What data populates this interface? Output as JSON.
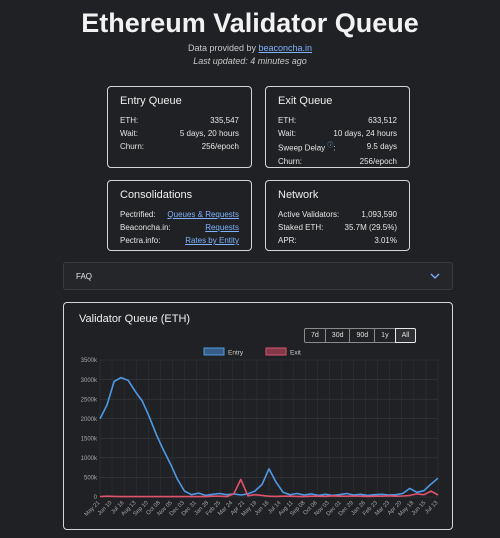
{
  "page": {
    "title": "Ethereum Validator Queue",
    "provided_prefix": "Data provided by ",
    "provider_link": "beaconcha.in",
    "last_updated": "Last updated: 4 minutes ago"
  },
  "entry": {
    "title": "Entry Queue",
    "rows": [
      {
        "label": "ETH:",
        "value": "335,547"
      },
      {
        "label": "Wait:",
        "value": "5 days, 20 hours"
      },
      {
        "label": "Churn:",
        "value": "256/epoch"
      }
    ]
  },
  "exit": {
    "title": "Exit Queue",
    "eth_label": "ETH:",
    "eth_value": "633,512",
    "wait_label": "Wait:",
    "wait_value": "10 days, 24 hours",
    "sweep_label": "Sweep Delay",
    "sweep_value": "9.5 days",
    "sweep_info_icon": "info-icon",
    "churn_label": "Churn:",
    "churn_value": "256/epoch"
  },
  "consolidations": {
    "title": "Consolidations",
    "rows": [
      {
        "label": "Pectrified:",
        "link": "Queues & Requests"
      },
      {
        "label": "Beaconcha.in:",
        "link": "Requests"
      },
      {
        "label": "Pectra.info:",
        "link": "Rates by Entity"
      }
    ]
  },
  "network": {
    "title": "Network",
    "rows": [
      {
        "label": "Active Validators:",
        "value": "1,093,590"
      },
      {
        "label": "Staked ETH:",
        "value": "35.7M (29.5%)"
      },
      {
        "label": "APR:",
        "value": "3.01%"
      }
    ]
  },
  "faq": {
    "label": "FAQ",
    "icon": "chevron-down-icon"
  },
  "chart_panel": {
    "title": "Validator Queue (ETH)",
    "ranges": [
      "7d",
      "30d",
      "90d",
      "1y",
      "All"
    ],
    "active_range": "All"
  },
  "chart_data": {
    "type": "line",
    "title": "",
    "legend_position": "top",
    "grid": true,
    "ylim": [
      0,
      3500000
    ],
    "y_ticks": [
      "0",
      "500k",
      "1000k",
      "1500k",
      "2000k",
      "2500k",
      "3000k",
      "3500k"
    ],
    "x_ticks": [
      "May 21",
      "Jun 10",
      "Jul 16",
      "Aug 13",
      "Sep 10",
      "Oct 08",
      "Nov 05",
      "Dec 03",
      "Dec 31",
      "Jan 28",
      "Feb 25",
      "Mar 24",
      "Apr 21",
      "May 19",
      "Jun 16",
      "Jul 14",
      "Aug 11",
      "Sep 08",
      "Oct 06",
      "Nov 03",
      "Dec 01",
      "Dec 29",
      "Jan 26",
      "Feb 23",
      "Mar 23",
      "Apr 20",
      "May 18",
      "Jun 15",
      "Jul 13"
    ],
    "series": [
      {
        "name": "Entry",
        "color": "#4f9ae6",
        "values": [
          2000000,
          2350000,
          2950000,
          3050000,
          2980000,
          2700000,
          2450000,
          2050000,
          1600000,
          1200000,
          850000,
          450000,
          150000,
          60000,
          100000,
          40000,
          70000,
          90000,
          60000,
          80000,
          50000,
          80000,
          150000,
          320000,
          720000,
          380000,
          120000,
          60000,
          90000,
          50000,
          80000,
          40000,
          70000,
          40000,
          60000,
          90000,
          50000,
          70000,
          40000,
          60000,
          70000,
          50000,
          60000,
          90000,
          220000,
          120000,
          160000,
          330000,
          480000
        ]
      },
      {
        "name": "Exit",
        "color": "#e0526e",
        "values": [
          10000,
          20000,
          15000,
          10000,
          10000,
          10000,
          10000,
          10000,
          10000,
          10000,
          10000,
          10000,
          10000,
          10000,
          10000,
          10000,
          20000,
          20000,
          10000,
          80000,
          450000,
          30000,
          60000,
          40000,
          20000,
          15000,
          20000,
          20000,
          15000,
          10000,
          20000,
          20000,
          15000,
          30000,
          20000,
          20000,
          25000,
          20000,
          15000,
          20000,
          20000,
          30000,
          20000,
          25000,
          40000,
          80000,
          60000,
          150000,
          50000
        ]
      }
    ]
  }
}
